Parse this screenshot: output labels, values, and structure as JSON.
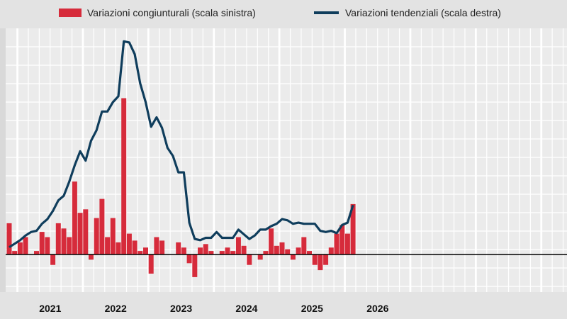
{
  "chart_data": {
    "type": "bar+line",
    "legend_position": "top",
    "grid": true,
    "x_labels": [
      "2021",
      "2022",
      "2023",
      "2024",
      "2025",
      "2026"
    ],
    "months_start": "2020-11",
    "series": [
      {
        "name": "Variazioni congiunturali (scala sinistra)",
        "type": "bar",
        "axis": "left",
        "color": "#d62b3b",
        "values": [
          0.9,
          0.1,
          0.35,
          0.5,
          0.0,
          0.1,
          0.65,
          0.5,
          -0.3,
          0.9,
          0.75,
          0.5,
          2.1,
          1.2,
          1.3,
          -0.15,
          1.05,
          1.6,
          0.5,
          1.05,
          0.35,
          4.5,
          0.6,
          0.4,
          0.1,
          0.2,
          -0.55,
          0.5,
          0.4,
          0.0,
          0.0,
          0.35,
          0.2,
          -0.25,
          -0.65,
          0.2,
          0.3,
          0.1,
          0.0,
          0.1,
          0.2,
          0.1,
          0.5,
          0.25,
          -0.3,
          0.0,
          -0.15,
          0.1,
          0.75,
          0.25,
          0.35,
          0.15,
          -0.15,
          0.2,
          0.5,
          0.1,
          -0.3,
          -0.45,
          -0.3,
          0.2,
          0.6,
          0.85,
          0.6,
          1.45
        ]
      },
      {
        "name": "Variazioni tendenziali (scala destra)",
        "type": "line",
        "axis": "right",
        "color": "#0f3d5c",
        "values": [
          0.2,
          0.5,
          0.8,
          1.2,
          1.5,
          1.6,
          2.2,
          2.6,
          3.3,
          4.2,
          4.6,
          5.8,
          7.2,
          8.4,
          7.6,
          9.3,
          10.2,
          11.8,
          11.8,
          12.6,
          13.1,
          17.8,
          17.7,
          16.7,
          14.2,
          12.6,
          10.5,
          11.3,
          10.4,
          8.7,
          8.0,
          6.6,
          6.6,
          2.3,
          0.9,
          0.8,
          1.0,
          1.0,
          1.5,
          1.0,
          1.0,
          1.0,
          1.7,
          1.3,
          0.9,
          1.2,
          1.7,
          1.7,
          2.0,
          2.2,
          2.6,
          2.5,
          2.2,
          2.3,
          2.2,
          2.2,
          2.2,
          1.6,
          1.5,
          1.6,
          1.4,
          2.1,
          2.3,
          3.8
        ]
      }
    ]
  }
}
